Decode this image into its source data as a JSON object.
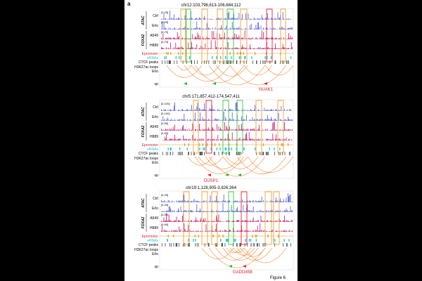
{
  "figure": {
    "panel_letter": "a",
    "caption": "Figure 6"
  },
  "colors": {
    "atac": "#4f5bd5",
    "foxa2": "#c2186b",
    "epromoter": "#d9a520",
    "erna": "#22c8e0",
    "ctcf": "#333333",
    "loops": "#f07c1e",
    "box_orange": "#f0a030",
    "box_green": "#37c837",
    "box_red": "#e8202a",
    "arrow_green": "#22bb22",
    "arrow_red": "#e8202a",
    "gene_label": "#e8202a"
  },
  "panels": [
    {
      "locus": "chr12:103,796,613-106,684,112",
      "ranges": [
        "[0-25]",
        "[0-25]",
        "[0-70]",
        "[0-70]"
      ],
      "gene": "NUAK1",
      "track_labels": {
        "atac_ctrl": "Ctrl",
        "atac_erlo": "Erlo",
        "atac_group": "ATAC",
        "foxa2_a549": "A549",
        "foxa2_h889": "H889",
        "foxa2_group": "FOXA2",
        "epromoter": "Epromoter",
        "erna": "eRNAs",
        "ctcf": "CTCF peaks",
        "loops": "H3K27ac loops",
        "loops_erlo": "Erlo",
        "up": "up"
      }
    },
    {
      "locus": "chr5:171,857,412-174,547,411",
      "ranges": [
        "[0-100]",
        "[0-100]",
        "[0-50]",
        "[0-50]"
      ],
      "gene": "DUSP1",
      "track_labels": {
        "atac_ctrl": "Ctrl",
        "atac_erlo": "Erlo",
        "atac_group": "ATAC",
        "foxa2_a549": "A549",
        "foxa2_h889": "H889",
        "foxa2_group": "FOXA2",
        "epromoter": "Epromoter",
        "erna": "eRNAs",
        "ctcf": "CTCF peaks",
        "loops": "H3K27ac loops",
        "loops_erlo": "Erlo",
        "up": "up"
      }
    },
    {
      "locus": "chr19:1,128,905-3,826,364",
      "ranges": [
        "[0-25]",
        "[0-25]",
        "[0-50]",
        "[0-50]"
      ],
      "gene": "GADD45B",
      "track_labels": {
        "atac_ctrl": "Ctrl",
        "atac_erlo": "Erlo",
        "atac_group": "ATAC",
        "foxa2_a549": "A549",
        "foxa2_h889": "H889",
        "foxa2_group": "FOXA2",
        "epromoter": "Epromoter",
        "erna": "eRNAs",
        "ctcf": "CTCF peaks",
        "loops": "H3K27ac loops",
        "loops_erlo": "Erlo",
        "up": "up"
      }
    }
  ]
}
